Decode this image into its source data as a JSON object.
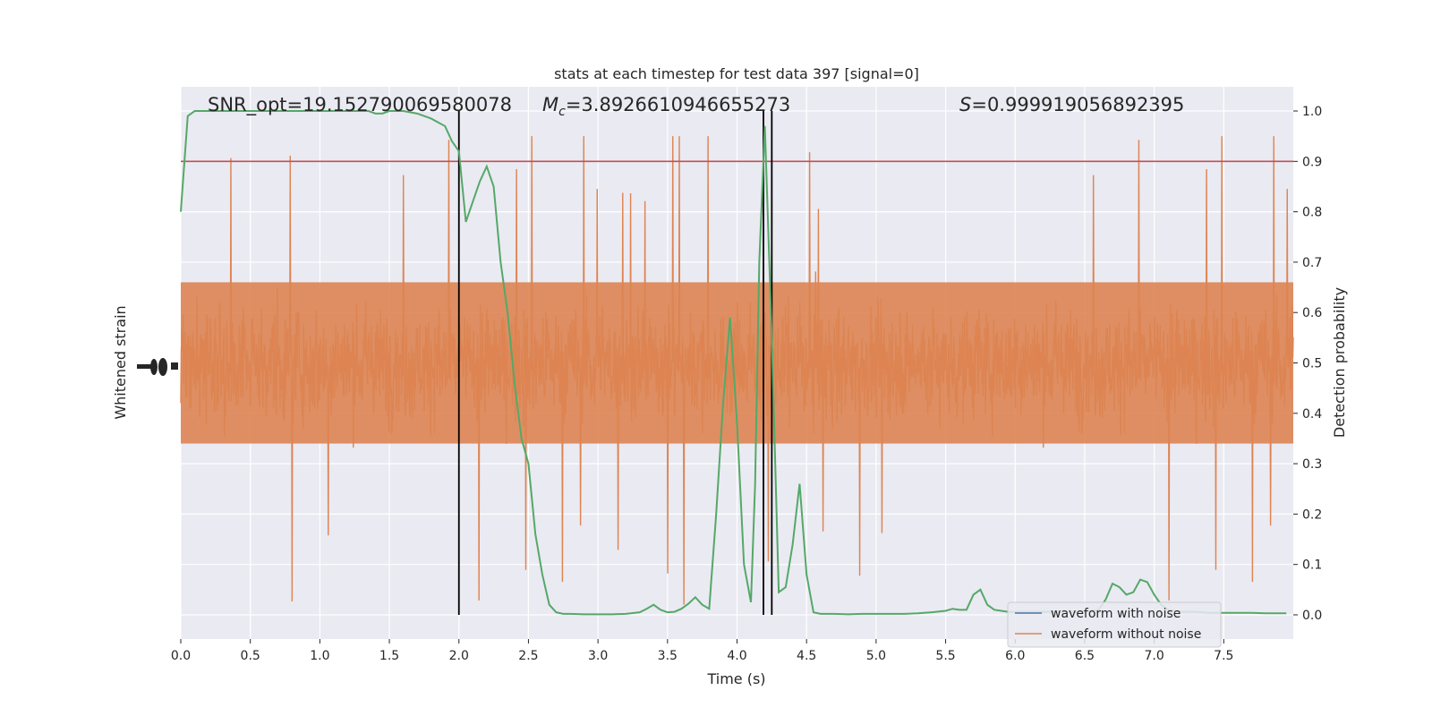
{
  "chart_data": {
    "type": "line",
    "title": "stats at each timestep for test data 397 [signal=0]",
    "xlabel": "Time (s)",
    "ylabel_left": "Whitened strain",
    "ylabel_right": "Detection probability",
    "xlim": [
      0.0,
      8.0
    ],
    "ylim_right": [
      -0.048,
      1.048
    ],
    "x_ticks": [
      "0.0",
      "0.5",
      "1.0",
      "1.5",
      "2.0",
      "2.5",
      "3.0",
      "3.5",
      "4.0",
      "4.5",
      "5.0",
      "5.5",
      "6.0",
      "6.5",
      "7.0",
      "7.5"
    ],
    "y_ticks_right": [
      "0.0",
      "0.1",
      "0.2",
      "0.3",
      "0.4",
      "0.5",
      "0.6",
      "0.7",
      "0.8",
      "0.9",
      "1.0"
    ],
    "grid": true,
    "legend_position": "lower right",
    "legend": [
      {
        "label": "waveform with noise",
        "color": "#4c72b0"
      },
      {
        "label": "waveform without noise",
        "color": "#dd8452"
      }
    ],
    "annotations": {
      "snr": "SNR_opt=19.152790069580078",
      "mc_symbol": "M",
      "mc_sub": "c",
      "mc_value": "=3.8926610946655273",
      "s_symbol": "S",
      "s_value": "=0.999919056892395"
    },
    "threshold": {
      "value": 0.9,
      "color": "#c44e52"
    },
    "vertical_lines": [
      2.0,
      4.19,
      4.25
    ],
    "noise_series": {
      "name": "waveform without noise",
      "color": "#dd8452",
      "envelope_note": "dense whitened strain filling roughly 0.28–0.72 of detection axis with spikes to 0.0–0.95"
    },
    "probability_series": {
      "color": "#55a868",
      "x": [
        0.0,
        0.05,
        0.1,
        0.2,
        0.4,
        0.6,
        0.8,
        1.0,
        1.2,
        1.3,
        1.35,
        1.4,
        1.45,
        1.5,
        1.6,
        1.7,
        1.8,
        1.9,
        1.95,
        2.0,
        2.05,
        2.1,
        2.15,
        2.2,
        2.25,
        2.3,
        2.35,
        2.4,
        2.45,
        2.5,
        2.55,
        2.6,
        2.65,
        2.7,
        2.75,
        2.8,
        2.9,
        3.0,
        3.1,
        3.2,
        3.3,
        3.35,
        3.4,
        3.45,
        3.5,
        3.55,
        3.6,
        3.65,
        3.7,
        3.75,
        3.8,
        3.85,
        3.9,
        3.95,
        4.0,
        4.05,
        4.1,
        4.13,
        4.16,
        4.2,
        4.25,
        4.3,
        4.35,
        4.4,
        4.45,
        4.5,
        4.55,
        4.6,
        4.65,
        4.7,
        4.8,
        4.9,
        5.0,
        5.1,
        5.2,
        5.3,
        5.4,
        5.5,
        5.55,
        5.6,
        5.65,
        5.7,
        5.75,
        5.8,
        5.85,
        5.9,
        5.95,
        6.0,
        6.1,
        6.2,
        6.3,
        6.4,
        6.5,
        6.6,
        6.65,
        6.7,
        6.75,
        6.8,
        6.85,
        6.9,
        6.95,
        7.0,
        7.05,
        7.1,
        7.15,
        7.2,
        7.3,
        7.4,
        7.5,
        7.6,
        7.7,
        7.8,
        7.9,
        7.95
      ],
      "y": [
        0.8,
        0.99,
        1.0,
        1.0,
        1.0,
        1.0,
        1.0,
        1.0,
        1.0,
        1.0,
        1.0,
        0.995,
        0.995,
        1.0,
        1.0,
        0.995,
        0.985,
        0.97,
        0.94,
        0.92,
        0.78,
        0.82,
        0.86,
        0.89,
        0.85,
        0.7,
        0.6,
        0.46,
        0.35,
        0.3,
        0.16,
        0.08,
        0.02,
        0.005,
        0.002,
        0.002,
        0.001,
        0.001,
        0.001,
        0.002,
        0.005,
        0.012,
        0.02,
        0.01,
        0.005,
        0.006,
        0.012,
        0.022,
        0.035,
        0.02,
        0.012,
        0.2,
        0.42,
        0.59,
        0.38,
        0.1,
        0.025,
        0.26,
        0.7,
        0.97,
        0.55,
        0.045,
        0.055,
        0.14,
        0.26,
        0.08,
        0.005,
        0.002,
        0.002,
        0.002,
        0.001,
        0.002,
        0.002,
        0.002,
        0.002,
        0.003,
        0.005,
        0.008,
        0.012,
        0.01,
        0.01,
        0.04,
        0.05,
        0.02,
        0.01,
        0.008,
        0.006,
        0.006,
        0.006,
        0.006,
        0.006,
        0.006,
        0.006,
        0.01,
        0.03,
        0.062,
        0.055,
        0.04,
        0.045,
        0.07,
        0.065,
        0.04,
        0.02,
        0.01,
        0.008,
        0.006,
        0.006,
        0.004,
        0.004,
        0.004,
        0.004,
        0.003,
        0.003,
        0.003
      ]
    }
  }
}
